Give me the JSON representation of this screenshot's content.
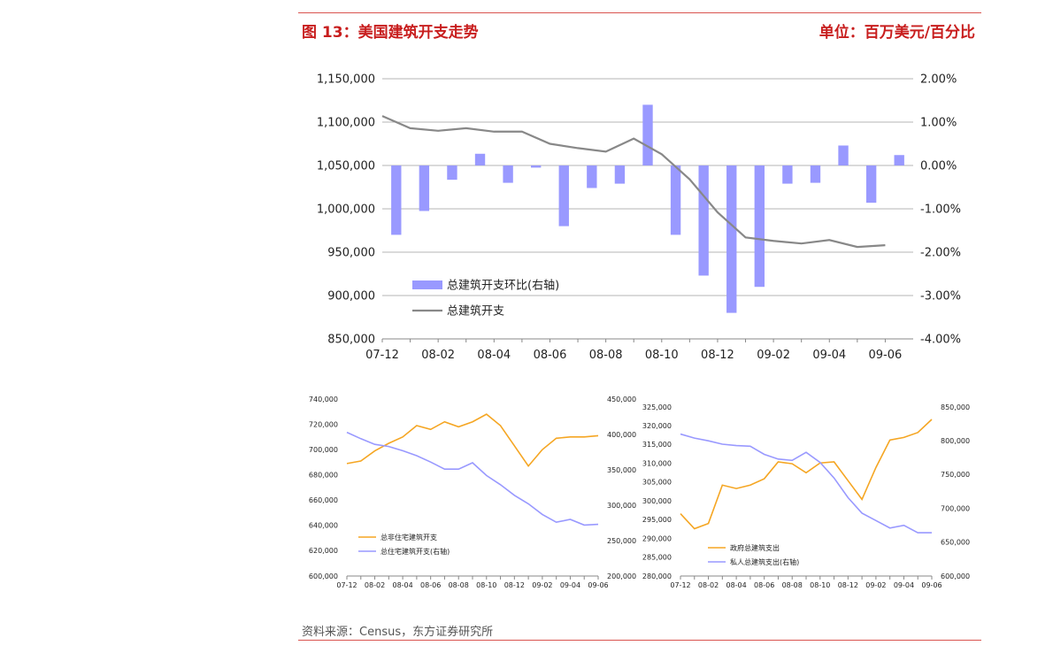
{
  "header": {
    "title": "图 13：美国建筑开支走势",
    "unit": "单位：百万美元/百分比"
  },
  "footer": {
    "source": "资料来源：Census，东方证券研究所"
  },
  "chart_data": [
    {
      "type": "bar+line",
      "categories": [
        "07-12",
        "08-01",
        "08-02",
        "08-03",
        "08-04",
        "08-05",
        "08-06",
        "08-07",
        "08-08",
        "08-09",
        "08-10",
        "08-11",
        "08-12",
        "09-01",
        "09-02",
        "09-03",
        "09-04",
        "09-05",
        "09-06"
      ],
      "x_tick_labels": [
        "07-12",
        "08-02",
        "08-04",
        "08-06",
        "08-08",
        "08-10",
        "08-12",
        "09-02",
        "09-04",
        "09-06"
      ],
      "left_axis": {
        "min": 850000,
        "max": 1150000,
        "ticks": [
          "850,000",
          "900,000",
          "950,000",
          "1,000,000",
          "1,050,000",
          "1,100,000",
          "1,150,000"
        ]
      },
      "right_axis": {
        "min": -4,
        "max": 2,
        "ticks": [
          "-4.00%",
          "-3.00%",
          "-2.00%",
          "-1.00%",
          "0.00%",
          "1.00%",
          "2.00%"
        ]
      },
      "series": [
        {
          "name": "总建筑开支环比(右轴)",
          "type": "bar",
          "axis": "right",
          "color": "#9999ff",
          "values": [
            -1.6,
            -1.05,
            -0.33,
            0.27,
            -0.4,
            -0.05,
            -1.4,
            -0.52,
            -0.42,
            1.4,
            -1.6,
            -2.54,
            -3.4,
            -2.8,
            -0.42,
            -0.4,
            0.46,
            -0.86,
            0.24
          ]
        },
        {
          "name": "总建筑开支",
          "type": "line",
          "axis": "left",
          "color": "#888888",
          "values": [
            1107000,
            1093000,
            1090000,
            1093000,
            1089000,
            1089000,
            1075000,
            1070000,
            1066000,
            1081000,
            1063000,
            1034000,
            996000,
            967000,
            963000,
            960000,
            964000,
            956000,
            958000
          ]
        }
      ],
      "grid": true,
      "legend": "lower-middle"
    },
    {
      "type": "line",
      "categories": [
        "07-12",
        "08-01",
        "08-02",
        "08-03",
        "08-04",
        "08-05",
        "08-06",
        "08-07",
        "08-08",
        "08-09",
        "08-10",
        "08-11",
        "08-12",
        "09-01",
        "09-02",
        "09-03",
        "09-04",
        "09-05",
        "09-06"
      ],
      "x_tick_labels": [
        "07-12",
        "08-02",
        "08-04",
        "08-06",
        "08-08",
        "08-10",
        "08-12",
        "09-02",
        "09-04",
        "09-06"
      ],
      "left_axis": {
        "min": 600000,
        "max": 740000,
        "ticks": [
          "600,000",
          "620,000",
          "640,000",
          "660,000",
          "680,000",
          "700,000",
          "720,000",
          "740,000"
        ]
      },
      "right_axis": {
        "min": 200000,
        "max": 450000,
        "ticks": [
          "200,000",
          "250,000",
          "300,000",
          "350,000",
          "400,000",
          "450,000"
        ]
      },
      "series": [
        {
          "name": "总非住宅建筑开支",
          "axis": "left",
          "color": "#f5a623",
          "values": [
            689000,
            691000,
            699000,
            705000,
            710000,
            719000,
            716000,
            722000,
            718000,
            722000,
            728000,
            719000,
            703000,
            687000,
            700000,
            709000,
            710000,
            710000,
            711000
          ]
        },
        {
          "name": "总住宅建筑开支(右轴)",
          "axis": "right",
          "color": "#9999ff",
          "values": [
            403000,
            394000,
            386000,
            383000,
            377000,
            370000,
            361000,
            351000,
            351000,
            360000,
            342000,
            329000,
            314000,
            302000,
            287000,
            276000,
            280000,
            272000,
            273000
          ]
        }
      ],
      "grid": false,
      "legend": "lower-left"
    },
    {
      "type": "line",
      "categories": [
        "07-12",
        "08-01",
        "08-02",
        "08-03",
        "08-04",
        "08-05",
        "08-06",
        "08-07",
        "08-08",
        "08-09",
        "08-10",
        "08-11",
        "08-12",
        "09-01",
        "09-02",
        "09-03",
        "09-04",
        "09-05",
        "09-06"
      ],
      "x_tick_labels": [
        "07-12",
        "08-02",
        "08-04",
        "08-06",
        "08-08",
        "08-10",
        "08-12",
        "09-02",
        "09-04",
        "09-06"
      ],
      "left_axis": {
        "min": 280000,
        "max": 325000,
        "ticks": [
          "280,000",
          "285,000",
          "290,000",
          "295,000",
          "300,000",
          "305,000",
          "310,000",
          "315,000",
          "320,000",
          "325,000"
        ]
      },
      "right_axis": {
        "min": 600000,
        "max": 850000,
        "ticks": [
          "600,000",
          "650,000",
          "700,000",
          "750,000",
          "800,000",
          "850,000"
        ]
      },
      "series": [
        {
          "name": "政府总建筑支出",
          "axis": "left",
          "color": "#f5a623",
          "values": [
            296600,
            292600,
            294000,
            304200,
            303300,
            304200,
            305900,
            310400,
            309900,
            307500,
            310100,
            310400,
            305400,
            300400,
            308900,
            316200,
            316900,
            318200,
            321700
          ]
        },
        {
          "name": "私人总建筑支出(右轴)",
          "axis": "right",
          "color": "#9999ff",
          "values": [
            810000,
            804000,
            800000,
            795000,
            793000,
            792000,
            780000,
            773000,
            771000,
            783000,
            768000,
            745000,
            716000,
            693000,
            682000,
            671000,
            675000,
            664000,
            664000
          ]
        }
      ],
      "grid": false,
      "legend": "lower-left"
    }
  ]
}
